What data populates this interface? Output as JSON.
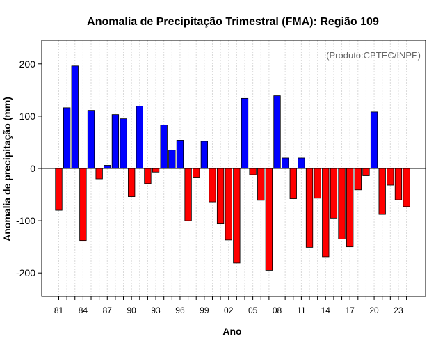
{
  "chart_data": {
    "type": "bar",
    "title": "Anomalia de Precipitação Trimestral (FMA): Região 109",
    "credit": "(Produto:CPTEC/INPE)",
    "xlabel": "Ano",
    "ylabel": "Anomalia de precipitação (mm)",
    "ylim": [
      -245,
      245
    ],
    "yticks": [
      -200,
      -100,
      0,
      100,
      200
    ],
    "tick_labels": [
      "81",
      "84",
      "87",
      "90",
      "93",
      "96",
      "99",
      "02",
      "05",
      "08",
      "11",
      "14",
      "17",
      "20",
      "23"
    ],
    "categories": [
      "1981",
      "1982",
      "1983",
      "1984",
      "1985",
      "1986",
      "1987",
      "1988",
      "1989",
      "1990",
      "1991",
      "1992",
      "1993",
      "1994",
      "1995",
      "1996",
      "1997",
      "1998",
      "1999",
      "2000",
      "2001",
      "2002",
      "2003",
      "2004",
      "2005",
      "2006",
      "2007",
      "2008",
      "2009",
      "2010",
      "2011",
      "2012",
      "2013",
      "2014",
      "2015",
      "2016",
      "2017",
      "2018",
      "2019",
      "2020",
      "2021",
      "2022",
      "2023",
      "2024"
    ],
    "values": [
      -80,
      116,
      196,
      -138,
      111,
      -20,
      6,
      103,
      95,
      -54,
      119,
      -29,
      -7,
      83,
      35,
      54,
      -100,
      -18,
      52,
      -64,
      -106,
      -137,
      -181,
      134,
      -12,
      -61,
      -195,
      139,
      20,
      -58,
      20,
      -151,
      -57,
      -169,
      -95,
      -135,
      -150,
      -41,
      -14,
      108,
      -88,
      -32,
      -60,
      -73
    ],
    "grid": true,
    "colors": {
      "positive": "#0000ff",
      "negative": "#ff0000",
      "grid": "#d9d9d9",
      "credit": "#666666"
    }
  }
}
